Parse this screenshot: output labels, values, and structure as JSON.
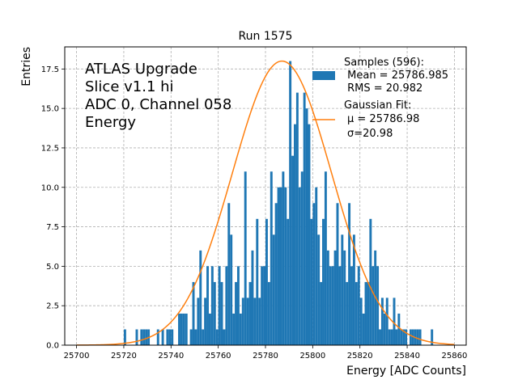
{
  "chart_data": {
    "type": "histogram",
    "title": "Run 1575",
    "xlabel": "Energy [ADC Counts]",
    "ylabel": "Entries",
    "xlim": [
      25695,
      25865
    ],
    "ylim": [
      0,
      18.9
    ],
    "grid": true,
    "x_ticks": [
      25700,
      25720,
      25740,
      25760,
      25780,
      25800,
      25820,
      25840,
      25860
    ],
    "y_ticks": [
      0.0,
      2.5,
      5.0,
      7.5,
      10.0,
      12.5,
      15.0,
      17.5
    ],
    "x_tick_labels": [
      "25700",
      "25720",
      "25740",
      "25760",
      "25780",
      "25800",
      "25820",
      "25840",
      "25860"
    ],
    "y_tick_labels": [
      "0.0",
      "2.5",
      "5.0",
      "7.5",
      "10.0",
      "12.5",
      "15.0",
      "17.5"
    ],
    "info_lines": [
      "ATLAS Upgrade",
      "Slice v1.1 hi",
      "ADC 0, Channel 058",
      "Energy"
    ],
    "legend": {
      "position": "upper-right",
      "histogram_label": [
        "Samples (596):",
        " Mean = 25786.985",
        " RMS = 20.982"
      ],
      "fit_label": [
        "Gaussian Fit:",
        "μ = 25786.98",
        "σ=20.98"
      ]
    },
    "colors": {
      "histogram": "#1f77b4",
      "fit": "#ff7f0e",
      "grid": "#b0b0b0"
    },
    "histogram": {
      "bin_width": 1,
      "bins": [
        [
          25720,
          1
        ],
        [
          25725,
          1
        ],
        [
          25727,
          1
        ],
        [
          25728,
          1
        ],
        [
          25729,
          1
        ],
        [
          25730,
          1
        ],
        [
          25734,
          1
        ],
        [
          25736,
          1
        ],
        [
          25738,
          1
        ],
        [
          25739,
          1
        ],
        [
          25740,
          1
        ],
        [
          25743,
          2
        ],
        [
          25744,
          2
        ],
        [
          25745,
          2
        ],
        [
          25746,
          2
        ],
        [
          25748,
          1
        ],
        [
          25749,
          4
        ],
        [
          25750,
          1
        ],
        [
          25751,
          3
        ],
        [
          25752,
          6
        ],
        [
          25753,
          1
        ],
        [
          25754,
          3
        ],
        [
          25755,
          5
        ],
        [
          25756,
          2
        ],
        [
          25757,
          5
        ],
        [
          25758,
          4
        ],
        [
          25759,
          1
        ],
        [
          25760,
          5
        ],
        [
          25761,
          4
        ],
        [
          25762,
          1
        ],
        [
          25763,
          5
        ],
        [
          25764,
          9
        ],
        [
          25765,
          7
        ],
        [
          25766,
          2
        ],
        [
          25767,
          4
        ],
        [
          25768,
          5
        ],
        [
          25769,
          2
        ],
        [
          25770,
          3
        ],
        [
          25771,
          11
        ],
        [
          25772,
          3
        ],
        [
          25773,
          4
        ],
        [
          25774,
          6
        ],
        [
          25775,
          3
        ],
        [
          25776,
          8
        ],
        [
          25777,
          3
        ],
        [
          25778,
          5
        ],
        [
          25779,
          5
        ],
        [
          25780,
          8
        ],
        [
          25781,
          4
        ],
        [
          25782,
          11
        ],
        [
          25783,
          7
        ],
        [
          25784,
          9
        ],
        [
          25785,
          10
        ],
        [
          25786,
          10
        ],
        [
          25787,
          11
        ],
        [
          25788,
          10
        ],
        [
          25789,
          8
        ],
        [
          25790,
          18
        ],
        [
          25791,
          12
        ],
        [
          25792,
          14
        ],
        [
          25793,
          16
        ],
        [
          25794,
          10
        ],
        [
          25795,
          11
        ],
        [
          25796,
          16
        ],
        [
          25797,
          15
        ],
        [
          25798,
          14
        ],
        [
          25799,
          8
        ],
        [
          25800,
          9
        ],
        [
          25801,
          10
        ],
        [
          25802,
          7
        ],
        [
          25803,
          4
        ],
        [
          25804,
          8
        ],
        [
          25805,
          11
        ],
        [
          25806,
          6
        ],
        [
          25807,
          5
        ],
        [
          25808,
          5
        ],
        [
          25809,
          6
        ],
        [
          25810,
          9
        ],
        [
          25811,
          5
        ],
        [
          25812,
          7
        ],
        [
          25813,
          6
        ],
        [
          25814,
          4
        ],
        [
          25815,
          9
        ],
        [
          25816,
          5
        ],
        [
          25817,
          7
        ],
        [
          25818,
          4
        ],
        [
          25819,
          5
        ],
        [
          25820,
          3
        ],
        [
          25821,
          2
        ],
        [
          25822,
          4
        ],
        [
          25823,
          4
        ],
        [
          25824,
          8
        ],
        [
          25825,
          5
        ],
        [
          25826,
          6
        ],
        [
          25827,
          5
        ],
        [
          25828,
          1
        ],
        [
          25829,
          3
        ],
        [
          25830,
          2
        ],
        [
          25831,
          3
        ],
        [
          25832,
          1
        ],
        [
          25833,
          1
        ],
        [
          25834,
          3
        ],
        [
          25835,
          1
        ],
        [
          25836,
          2
        ],
        [
          25837,
          1
        ],
        [
          25838,
          1
        ],
        [
          25839,
          1
        ],
        [
          25841,
          1
        ],
        [
          25842,
          1
        ],
        [
          25843,
          1
        ],
        [
          25844,
          1
        ],
        [
          25845,
          1
        ],
        [
          25850,
          1
        ]
      ]
    },
    "fit": {
      "type": "gaussian",
      "mu": 25786.98,
      "sigma": 20.98,
      "amplitude": 18.0,
      "x_range": [
        25700,
        25860
      ]
    }
  }
}
